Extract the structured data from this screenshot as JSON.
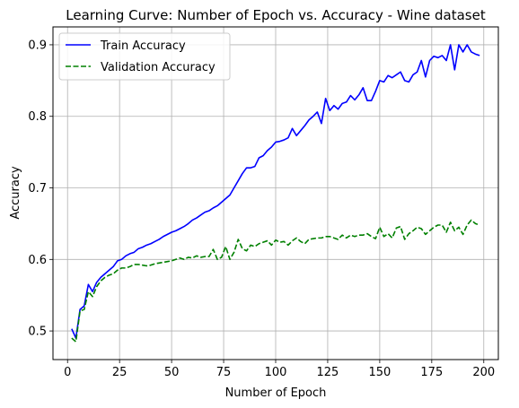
{
  "chart_data": {
    "type": "line",
    "title": "Learning Curve: Number of Epoch vs. Accuracy - Wine dataset",
    "xlabel": "Number of Epoch",
    "ylabel": "Accuracy",
    "xlim": [
      -7,
      207
    ],
    "ylim": [
      0.46,
      0.925
    ],
    "xticks": [
      0,
      25,
      50,
      75,
      100,
      125,
      150,
      175,
      200
    ],
    "yticks": [
      0.5,
      0.6,
      0.7,
      0.8,
      0.9
    ],
    "ytick_labels": [
      "0.5",
      "0.6",
      "0.7",
      "0.8",
      "0.9"
    ],
    "grid": true,
    "legend_position": "upper-left",
    "x": [
      2,
      4,
      6,
      8,
      10,
      12,
      14,
      16,
      18,
      20,
      22,
      24,
      26,
      28,
      30,
      32,
      34,
      36,
      38,
      40,
      42,
      44,
      46,
      48,
      50,
      52,
      54,
      56,
      58,
      60,
      62,
      64,
      66,
      68,
      70,
      72,
      74,
      76,
      78,
      80,
      82,
      84,
      86,
      88,
      90,
      92,
      94,
      96,
      98,
      100,
      102,
      104,
      106,
      108,
      110,
      112,
      114,
      116,
      118,
      120,
      122,
      124,
      126,
      128,
      130,
      132,
      134,
      136,
      138,
      140,
      142,
      144,
      146,
      148,
      150,
      152,
      154,
      156,
      158,
      160,
      162,
      164,
      166,
      168,
      170,
      172,
      174,
      176,
      178,
      180,
      182,
      184,
      186,
      188,
      190,
      192,
      194,
      196,
      198
    ],
    "series": [
      {
        "name": "Train Accuracy",
        "color": "#0000ff",
        "style": "solid",
        "values": [
          0.503,
          0.49,
          0.53,
          0.535,
          0.565,
          0.555,
          0.568,
          0.575,
          0.58,
          0.585,
          0.59,
          0.598,
          0.6,
          0.605,
          0.608,
          0.61,
          0.615,
          0.617,
          0.62,
          0.622,
          0.625,
          0.628,
          0.632,
          0.635,
          0.638,
          0.64,
          0.643,
          0.646,
          0.65,
          0.655,
          0.658,
          0.662,
          0.666,
          0.668,
          0.672,
          0.675,
          0.68,
          0.685,
          0.69,
          0.7,
          0.71,
          0.72,
          0.728,
          0.728,
          0.73,
          0.742,
          0.745,
          0.752,
          0.757,
          0.764,
          0.765,
          0.767,
          0.77,
          0.783,
          0.773,
          0.78,
          0.787,
          0.795,
          0.8,
          0.806,
          0.79,
          0.825,
          0.808,
          0.815,
          0.81,
          0.818,
          0.82,
          0.829,
          0.823,
          0.83,
          0.84,
          0.822,
          0.822,
          0.835,
          0.85,
          0.848,
          0.857,
          0.854,
          0.858,
          0.862,
          0.85,
          0.848,
          0.858,
          0.862,
          0.878,
          0.855,
          0.878,
          0.884,
          0.882,
          0.885,
          0.878,
          0.9,
          0.865,
          0.9,
          0.89,
          0.9,
          0.89,
          0.887,
          0.885
        ]
      },
      {
        "name": "Validation Accuracy",
        "color": "#008000",
        "style": "dashed",
        "values": [
          0.49,
          0.485,
          0.528,
          0.53,
          0.555,
          0.548,
          0.562,
          0.57,
          0.575,
          0.578,
          0.58,
          0.585,
          0.588,
          0.588,
          0.59,
          0.593,
          0.593,
          0.592,
          0.591,
          0.592,
          0.594,
          0.595,
          0.596,
          0.597,
          0.598,
          0.6,
          0.602,
          0.6,
          0.603,
          0.602,
          0.605,
          0.603,
          0.604,
          0.604,
          0.614,
          0.6,
          0.603,
          0.618,
          0.6,
          0.61,
          0.628,
          0.615,
          0.612,
          0.62,
          0.618,
          0.622,
          0.624,
          0.626,
          0.62,
          0.627,
          0.624,
          0.625,
          0.62,
          0.626,
          0.63,
          0.625,
          0.622,
          0.628,
          0.629,
          0.63,
          0.63,
          0.632,
          0.632,
          0.63,
          0.628,
          0.634,
          0.63,
          0.634,
          0.632,
          0.634,
          0.634,
          0.636,
          0.632,
          0.629,
          0.645,
          0.632,
          0.636,
          0.63,
          0.644,
          0.646,
          0.628,
          0.636,
          0.64,
          0.645,
          0.643,
          0.635,
          0.64,
          0.645,
          0.648,
          0.648,
          0.638,
          0.652,
          0.64,
          0.645,
          0.635,
          0.648,
          0.655,
          0.65,
          0.648
        ]
      }
    ]
  }
}
